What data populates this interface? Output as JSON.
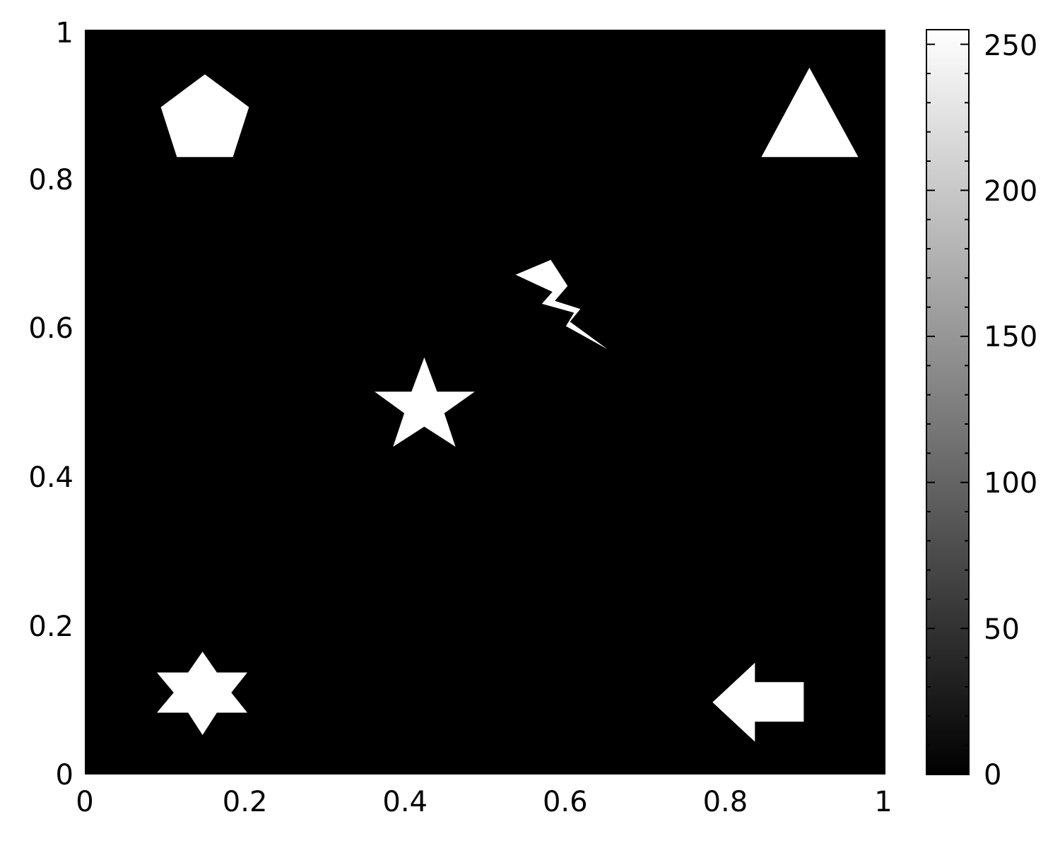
{
  "chart_data": {
    "type": "heatmap",
    "title": "",
    "xlabel": "",
    "ylabel": "",
    "xlim": [
      0,
      1
    ],
    "ylim": [
      0,
      1
    ],
    "x_ticks": [
      0,
      0.2,
      0.4,
      0.6,
      0.8,
      1
    ],
    "y_ticks": [
      0,
      0.2,
      0.4,
      0.6,
      0.8,
      1
    ],
    "x_tick_labels": [
      "0",
      "0.2",
      "0.4",
      "0.6",
      "0.8",
      "1"
    ],
    "y_tick_labels": [
      "0",
      "0.2",
      "0.4",
      "0.6",
      "0.8",
      "1"
    ],
    "grid": false,
    "background_value": 0,
    "colormap": "gray",
    "colorbar": {
      "placement": "right",
      "range": [
        0,
        255
      ],
      "major_ticks": [
        0,
        50,
        100,
        150,
        200,
        250
      ],
      "tick_labels": [
        "0",
        "50",
        "100",
        "150",
        "200",
        "250"
      ],
      "minor_tick_step": 10
    },
    "shapes": [
      {
        "name": "pentagon",
        "value": 255,
        "points": [
          [
            0.15,
            0.94
          ],
          [
            0.205,
            0.896
          ],
          [
            0.185,
            0.829
          ],
          [
            0.115,
            0.829
          ],
          [
            0.095,
            0.896
          ]
        ]
      },
      {
        "name": "triangle",
        "value": 255,
        "points": [
          [
            0.905,
            0.949
          ],
          [
            0.966,
            0.829
          ],
          [
            0.845,
            0.829
          ]
        ]
      },
      {
        "name": "lightning-bolt",
        "value": 255,
        "points": [
          [
            0.582,
            0.691
          ],
          [
            0.603,
            0.656
          ],
          [
            0.587,
            0.636
          ],
          [
            0.619,
            0.625
          ],
          [
            0.606,
            0.608
          ],
          [
            0.653,
            0.571
          ],
          [
            0.601,
            0.602
          ],
          [
            0.611,
            0.62
          ],
          [
            0.571,
            0.632
          ],
          [
            0.584,
            0.648
          ],
          [
            0.538,
            0.671
          ]
        ]
      },
      {
        "name": "star",
        "value": 255,
        "points": [
          [
            0.424,
            0.56
          ],
          [
            0.44,
            0.514
          ],
          [
            0.487,
            0.514
          ],
          [
            0.449,
            0.485
          ],
          [
            0.463,
            0.44
          ],
          [
            0.424,
            0.467
          ],
          [
            0.385,
            0.44
          ],
          [
            0.399,
            0.485
          ],
          [
            0.362,
            0.514
          ],
          [
            0.408,
            0.514
          ]
        ]
      },
      {
        "name": "hexagram",
        "value": 255,
        "points": [
          [
            0.147,
            0.165
          ],
          [
            0.165,
            0.137
          ],
          [
            0.203,
            0.137
          ],
          [
            0.183,
            0.11
          ],
          [
            0.203,
            0.083
          ],
          [
            0.165,
            0.083
          ],
          [
            0.147,
            0.053
          ],
          [
            0.129,
            0.083
          ],
          [
            0.09,
            0.083
          ],
          [
            0.111,
            0.11
          ],
          [
            0.09,
            0.137
          ],
          [
            0.129,
            0.137
          ]
        ]
      },
      {
        "name": "arrow-left",
        "value": 255,
        "points": [
          [
            0.784,
            0.097
          ],
          [
            0.837,
            0.15
          ],
          [
            0.837,
            0.124
          ],
          [
            0.898,
            0.124
          ],
          [
            0.898,
            0.071
          ],
          [
            0.837,
            0.071
          ],
          [
            0.837,
            0.044
          ]
        ]
      }
    ]
  }
}
